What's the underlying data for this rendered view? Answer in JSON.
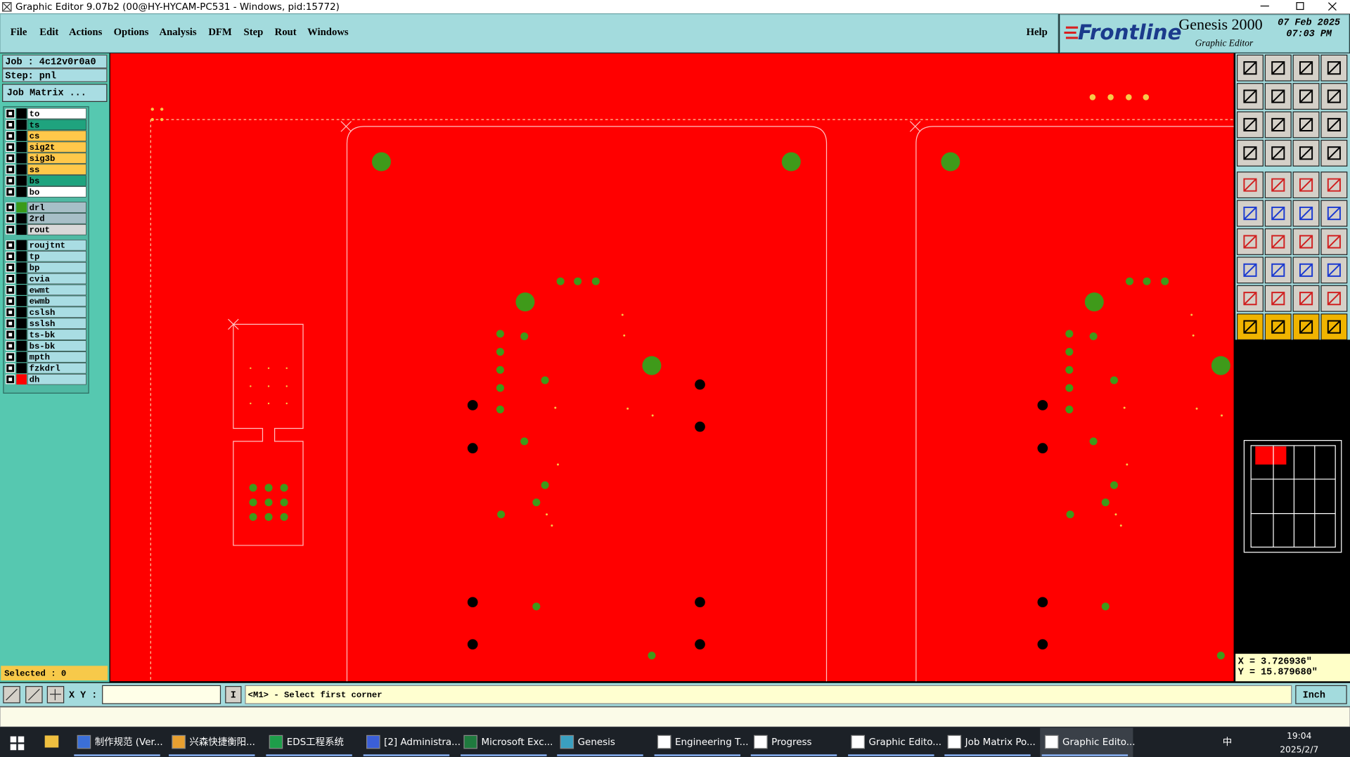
{
  "window": {
    "title": "Graphic Editor 9.07b2 (00@HY-HYCAM-PC531 - Windows, pid:15772)"
  },
  "menu": [
    "File",
    "Edit",
    "Actions",
    "Options",
    "Analysis",
    "DFM",
    "Step",
    "Rout",
    "Windows"
  ],
  "help": "Help",
  "brand": {
    "logo": "Frontline",
    "product": "Genesis 2000",
    "module": "Graphic Editor",
    "date": "07 Feb 2025",
    "time": "07:03 PM"
  },
  "job": "Job : 4c12v0r0a0",
  "step": "Step: pnl",
  "job_matrix_button": "Job Matrix ...",
  "layer_groups": [
    [
      {
        "name": "to",
        "color": "#ffffff",
        "indicator": "#000000"
      },
      {
        "name": "ts",
        "color": "#1fa37e",
        "indicator": "#000000"
      },
      {
        "name": "cs",
        "color": "#ffc84a",
        "indicator": "#000000"
      },
      {
        "name": "sig2t",
        "color": "#ffc84a",
        "indicator": "#000000"
      },
      {
        "name": "sig3b",
        "color": "#ffc84a",
        "indicator": "#000000"
      },
      {
        "name": "ss",
        "color": "#ffc84a",
        "indicator": "#000000"
      },
      {
        "name": "bs",
        "color": "#1fa37e",
        "indicator": "#000000"
      },
      {
        "name": "bo",
        "color": "#ffffff",
        "indicator": "#000000"
      }
    ],
    [
      {
        "name": "drl",
        "color": "#a7bfc7",
        "indicator": "#3a9a1a"
      },
      {
        "name": "2rd",
        "color": "#a7bfc7",
        "indicator": "#000000"
      },
      {
        "name": "rout",
        "color": "#d8d8d8",
        "indicator": "#000000"
      }
    ],
    [
      {
        "name": "roujtnt",
        "color": "#a9dde3",
        "indicator": "#000000"
      },
      {
        "name": "tp",
        "color": "#a9dde3",
        "indicator": "#000000"
      },
      {
        "name": "bp",
        "color": "#a9dde3",
        "indicator": "#000000"
      },
      {
        "name": "cvia",
        "color": "#a9dde3",
        "indicator": "#000000"
      },
      {
        "name": "ewmt",
        "color": "#a9dde3",
        "indicator": "#000000"
      },
      {
        "name": "ewmb",
        "color": "#a9dde3",
        "indicator": "#000000"
      },
      {
        "name": "cslsh",
        "color": "#a9dde3",
        "indicator": "#000000"
      },
      {
        "name": "sslsh",
        "color": "#a9dde3",
        "indicator": "#000000"
      },
      {
        "name": "ts-bk",
        "color": "#a9dde3",
        "indicator": "#000000"
      },
      {
        "name": "bs-bk",
        "color": "#a9dde3",
        "indicator": "#000000"
      },
      {
        "name": "mpth",
        "color": "#a9dde3",
        "indicator": "#000000"
      },
      {
        "name": "fzkdrl",
        "color": "#a9dde3",
        "indicator": "#000000"
      },
      {
        "name": "dh",
        "color": "#a9dde3",
        "indicator": "#ff0000"
      }
    ]
  ],
  "selected": "Selected : 0",
  "coordinates": {
    "x": "X = 3.726936\"",
    "y": "Y = 15.879680\""
  },
  "command_bar": {
    "xy_label": "X Y :",
    "cursor_button": "I",
    "prompt": "<M1> - Select first corner",
    "units": "Inch"
  },
  "taskbar": {
    "items": [
      "制作规范 (Ver...",
      "兴森快捷衡阳...",
      "EDS工程系统",
      "[2] Administra...",
      "Microsoft Exc...",
      "Genesis",
      "Engineering T...",
      "Progress",
      "Graphic Edito...",
      "Job Matrix Po...",
      "Graphic Edito..."
    ],
    "ime": "中",
    "time": "19:04",
    "date": "2025/2/7"
  }
}
